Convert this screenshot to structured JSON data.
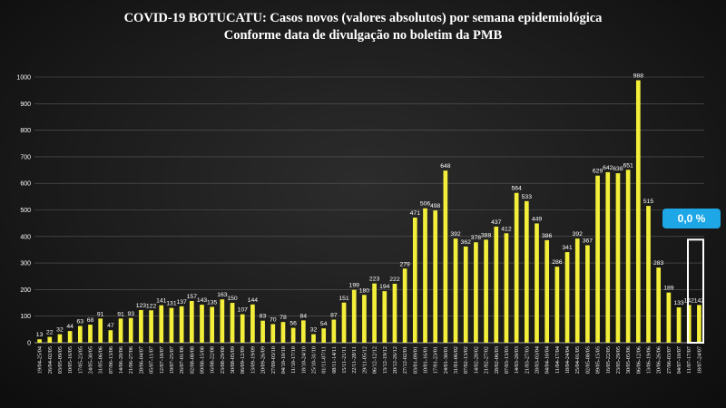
{
  "chart_data": {
    "type": "bar",
    "title": "COVID-19 BOTUCATU: Casos novos (valores absolutos) por semana epidemiológica",
    "subtitle": "Conforme data de divulgação no boletim da PMB",
    "categories": [
      "19/04-25/04",
      "26/04-02/05",
      "03/05-09/05",
      "10/05-16/05",
      "17/05-23/05",
      "24/05-30/05",
      "31/05-06/06",
      "07/06-13/06",
      "14/06-20/06",
      "21/06-27/06",
      "28/06-04/07",
      "05/07-11/07",
      "12/07-18/07",
      "19/07-25/07",
      "26/07-01/08",
      "02/08-08/08",
      "09/08-15/08",
      "16/08-22/08",
      "23/08-29/08",
      "30/08-05/09",
      "06/09-12/09",
      "13/09-19/09",
      "20/09-26/09",
      "27/09-03/10",
      "04/10-10/10",
      "11/10-17/10",
      "18/10-24/10",
      "25/10-31/10",
      "01/11-07/11",
      "08/11-14/11",
      "15/11-21/11",
      "22/11-28/11",
      "29/11-05/12",
      "06/12-12/12",
      "13/12-19/12",
      "20/12-26/12",
      "27/12-02/01",
      "03/01-09/01",
      "10/01-16/01",
      "17/01-23/01",
      "24/01-30/01",
      "31/01-06/02",
      "07/02-13/02",
      "14/02-20/02",
      "21/02-27/02",
      "28/02-06/03",
      "07/03-13/03",
      "14/03-20/03",
      "21/03-27/03",
      "28/03-03/04",
      "04/04-10/04",
      "11/04-17/04",
      "18/04-24/04",
      "25/04-01/05",
      "02/05-08/05",
      "09/05-15/05",
      "16/05-22/05",
      "23/05-29/05",
      "30/05-05/06",
      "06/06-12/06",
      "13/06-19/06",
      "20/06-26/06",
      "27/06-03/07",
      "04/07-10/07",
      "11/07-17/07",
      "18/07-24/07"
    ],
    "values": [
      13,
      22,
      32,
      44,
      63,
      68,
      91,
      47,
      91,
      93,
      123,
      122,
      141,
      131,
      137,
      157,
      143,
      135,
      163,
      150,
      107,
      144,
      83,
      70,
      78,
      56,
      84,
      32,
      54,
      87,
      151,
      199,
      180,
      223,
      194,
      222,
      279,
      471,
      506,
      498,
      648,
      392,
      362,
      378,
      388,
      437,
      412,
      564,
      533,
      449,
      386,
      286,
      341,
      392,
      367,
      629,
      642,
      638,
      651,
      988,
      515,
      283,
      189,
      133,
      142,
      142
    ],
    "ylim": [
      0,
      1000
    ],
    "yticks": [
      0,
      100,
      200,
      300,
      400,
      500,
      600,
      700,
      800,
      900,
      1000
    ],
    "bar_color": "#f2ee3a",
    "outline_bar_value": 388,
    "grid": true
  },
  "badge": {
    "text": "0,0 %",
    "color": "#1ea7e6"
  }
}
